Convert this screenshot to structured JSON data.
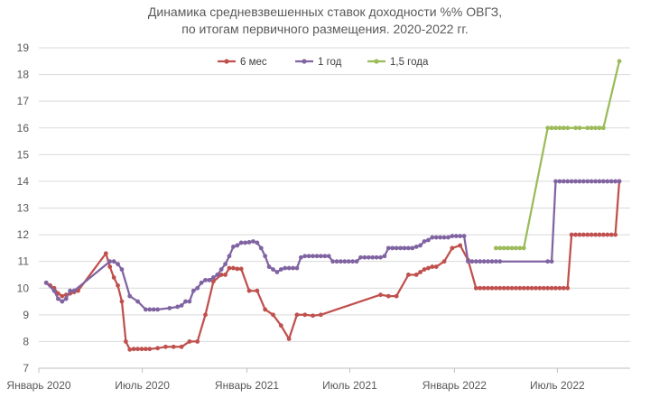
{
  "chart_data": {
    "type": "line",
    "title": "Динамика средневзвешенных ставок доходности %% ОВГЗ,",
    "subtitle": "по итогам первичного размещения. 2020-2022 гг.",
    "xlabel": "",
    "ylabel": "",
    "x_ticks": [
      {
        "date": "2020-01-01",
        "label": "Январь 2020"
      },
      {
        "date": "2020-07-01",
        "label": "Июль 2020"
      },
      {
        "date": "2021-01-01",
        "label": "Январь 2021"
      },
      {
        "date": "2021-07-01",
        "label": "Июль 2021"
      },
      {
        "date": "2022-01-01",
        "label": "Январь 2022"
      },
      {
        "date": "2022-07-01",
        "label": "Июль 2022"
      }
    ],
    "xlim": [
      "2020-01-01",
      "2022-11-06"
    ],
    "ylim": [
      7,
      19
    ],
    "y_ticks": [
      7,
      8,
      9,
      10,
      11,
      12,
      13,
      14,
      15,
      16,
      17,
      18,
      19
    ],
    "grid": true,
    "legend_position": "top",
    "series": [
      {
        "name": "6 мес",
        "color": "#c0504d",
        "points": [
          [
            "2020-01-14",
            10.2
          ],
          [
            "2020-01-21",
            10.1
          ],
          [
            "2020-01-28",
            10.0
          ],
          [
            "2020-02-04",
            9.8
          ],
          [
            "2020-02-11",
            9.7
          ],
          [
            "2020-02-18",
            9.75
          ],
          [
            "2020-02-25",
            9.8
          ],
          [
            "2020-03-03",
            9.85
          ],
          [
            "2020-03-10",
            9.9
          ],
          [
            "2020-04-28",
            11.3
          ],
          [
            "2020-05-05",
            10.8
          ],
          [
            "2020-05-12",
            10.4
          ],
          [
            "2020-05-19",
            10.1
          ],
          [
            "2020-05-26",
            9.5
          ],
          [
            "2020-06-02",
            8.0
          ],
          [
            "2020-06-09",
            7.7
          ],
          [
            "2020-06-16",
            7.72
          ],
          [
            "2020-06-23",
            7.72
          ],
          [
            "2020-06-30",
            7.72
          ],
          [
            "2020-07-07",
            7.72
          ],
          [
            "2020-07-14",
            7.72
          ],
          [
            "2020-07-28",
            7.75
          ],
          [
            "2020-08-11",
            7.8
          ],
          [
            "2020-08-25",
            7.8
          ],
          [
            "2020-09-08",
            7.8
          ],
          [
            "2020-09-22",
            8.0
          ],
          [
            "2020-10-06",
            8.0
          ],
          [
            "2020-10-20",
            9.0
          ],
          [
            "2020-11-03",
            10.25
          ],
          [
            "2020-11-17",
            10.5
          ],
          [
            "2020-11-24",
            10.5
          ],
          [
            "2020-12-01",
            10.75
          ],
          [
            "2020-12-08",
            10.75
          ],
          [
            "2020-12-15",
            10.72
          ],
          [
            "2020-12-22",
            10.72
          ],
          [
            "2021-01-05",
            9.9
          ],
          [
            "2021-01-19",
            9.9
          ],
          [
            "2021-02-02",
            9.2
          ],
          [
            "2021-02-16",
            9.0
          ],
          [
            "2021-03-02",
            8.6
          ],
          [
            "2021-03-16",
            8.1
          ],
          [
            "2021-03-30",
            9.0
          ],
          [
            "2021-04-13",
            9.0
          ],
          [
            "2021-04-27",
            8.97
          ],
          [
            "2021-05-11",
            9.0
          ],
          [
            "2021-08-24",
            9.75
          ],
          [
            "2021-09-07",
            9.7
          ],
          [
            "2021-09-21",
            9.7
          ],
          [
            "2021-10-12",
            10.5
          ],
          [
            "2021-10-26",
            10.5
          ],
          [
            "2021-11-02",
            10.6
          ],
          [
            "2021-11-09",
            10.7
          ],
          [
            "2021-11-16",
            10.75
          ],
          [
            "2021-11-23",
            10.8
          ],
          [
            "2021-11-30",
            10.8
          ],
          [
            "2021-12-14",
            11.0
          ],
          [
            "2021-12-28",
            11.5
          ],
          [
            "2022-01-11",
            11.6
          ],
          [
            "2022-01-25",
            11.05
          ],
          [
            "2022-02-08",
            10.0
          ],
          [
            "2022-02-15",
            10.0
          ],
          [
            "2022-02-22",
            10.0
          ],
          [
            "2022-03-01",
            10.0
          ],
          [
            "2022-03-08",
            10.0
          ],
          [
            "2022-03-15",
            10.0
          ],
          [
            "2022-03-22",
            10.0
          ],
          [
            "2022-03-29",
            10.0
          ],
          [
            "2022-04-05",
            10.0
          ],
          [
            "2022-04-12",
            10.0
          ],
          [
            "2022-04-19",
            10.0
          ],
          [
            "2022-04-26",
            10.0
          ],
          [
            "2022-05-03",
            10.0
          ],
          [
            "2022-05-10",
            10.0
          ],
          [
            "2022-05-17",
            10.0
          ],
          [
            "2022-05-24",
            10.0
          ],
          [
            "2022-05-31",
            10.0
          ],
          [
            "2022-06-07",
            10.0
          ],
          [
            "2022-06-14",
            10.0
          ],
          [
            "2022-06-21",
            10.0
          ],
          [
            "2022-06-28",
            10.0
          ],
          [
            "2022-07-05",
            10.0
          ],
          [
            "2022-07-12",
            10.0
          ],
          [
            "2022-07-19",
            10.0
          ],
          [
            "2022-07-26",
            12.0
          ],
          [
            "2022-08-02",
            12.0
          ],
          [
            "2022-08-09",
            12.0
          ],
          [
            "2022-08-16",
            12.0
          ],
          [
            "2022-08-23",
            12.0
          ],
          [
            "2022-08-30",
            12.0
          ],
          [
            "2022-09-06",
            12.0
          ],
          [
            "2022-09-13",
            12.0
          ],
          [
            "2022-09-20",
            12.0
          ],
          [
            "2022-09-27",
            12.0
          ],
          [
            "2022-10-04",
            12.0
          ],
          [
            "2022-10-11",
            12.0
          ],
          [
            "2022-10-18",
            14.0
          ]
        ]
      },
      {
        "name": "1 год",
        "color": "#8064a2",
        "points": [
          [
            "2020-01-14",
            10.2
          ],
          [
            "2020-01-28",
            9.9
          ],
          [
            "2020-02-04",
            9.6
          ],
          [
            "2020-02-11",
            9.5
          ],
          [
            "2020-02-18",
            9.6
          ],
          [
            "2020-02-25",
            9.9
          ],
          [
            "2020-03-03",
            9.9
          ],
          [
            "2020-05-05",
            11.0
          ],
          [
            "2020-05-12",
            11.0
          ],
          [
            "2020-05-19",
            10.9
          ],
          [
            "2020-05-26",
            10.7
          ],
          [
            "2020-06-09",
            9.7
          ],
          [
            "2020-06-23",
            9.5
          ],
          [
            "2020-07-07",
            9.2
          ],
          [
            "2020-07-14",
            9.2
          ],
          [
            "2020-07-21",
            9.2
          ],
          [
            "2020-07-28",
            9.2
          ],
          [
            "2020-08-18",
            9.25
          ],
          [
            "2020-09-01",
            9.3
          ],
          [
            "2020-09-08",
            9.35
          ],
          [
            "2020-09-15",
            9.5
          ],
          [
            "2020-09-22",
            9.5
          ],
          [
            "2020-09-29",
            9.9
          ],
          [
            "2020-10-06",
            10.0
          ],
          [
            "2020-10-13",
            10.2
          ],
          [
            "2020-10-20",
            10.3
          ],
          [
            "2020-10-27",
            10.3
          ],
          [
            "2020-11-03",
            10.4
          ],
          [
            "2020-11-10",
            10.5
          ],
          [
            "2020-11-17",
            10.7
          ],
          [
            "2020-11-24",
            10.9
          ],
          [
            "2020-12-01",
            11.2
          ],
          [
            "2020-12-08",
            11.55
          ],
          [
            "2020-12-15",
            11.6
          ],
          [
            "2020-12-22",
            11.7
          ],
          [
            "2020-12-29",
            11.7
          ],
          [
            "2021-01-05",
            11.72
          ],
          [
            "2021-01-12",
            11.75
          ],
          [
            "2021-01-19",
            11.7
          ],
          [
            "2021-01-26",
            11.5
          ],
          [
            "2021-02-02",
            11.2
          ],
          [
            "2021-02-09",
            10.8
          ],
          [
            "2021-02-16",
            10.7
          ],
          [
            "2021-02-23",
            10.6
          ],
          [
            "2021-03-02",
            10.7
          ],
          [
            "2021-03-09",
            10.75
          ],
          [
            "2021-03-16",
            10.75
          ],
          [
            "2021-03-23",
            10.75
          ],
          [
            "2021-03-30",
            10.75
          ],
          [
            "2021-04-06",
            11.15
          ],
          [
            "2021-04-13",
            11.2
          ],
          [
            "2021-04-20",
            11.2
          ],
          [
            "2021-04-27",
            11.2
          ],
          [
            "2021-05-04",
            11.2
          ],
          [
            "2021-05-11",
            11.2
          ],
          [
            "2021-05-18",
            11.2
          ],
          [
            "2021-05-25",
            11.2
          ],
          [
            "2021-06-01",
            11.0
          ],
          [
            "2021-06-08",
            11.0
          ],
          [
            "2021-06-15",
            11.0
          ],
          [
            "2021-06-22",
            11.0
          ],
          [
            "2021-06-29",
            11.0
          ],
          [
            "2021-07-06",
            11.0
          ],
          [
            "2021-07-13",
            11.0
          ],
          [
            "2021-07-20",
            11.15
          ],
          [
            "2021-07-27",
            11.15
          ],
          [
            "2021-08-03",
            11.15
          ],
          [
            "2021-08-10",
            11.15
          ],
          [
            "2021-08-17",
            11.15
          ],
          [
            "2021-08-24",
            11.15
          ],
          [
            "2021-08-31",
            11.2
          ],
          [
            "2021-09-07",
            11.5
          ],
          [
            "2021-09-14",
            11.5
          ],
          [
            "2021-09-21",
            11.5
          ],
          [
            "2021-09-28",
            11.5
          ],
          [
            "2021-10-05",
            11.5
          ],
          [
            "2021-10-12",
            11.5
          ],
          [
            "2021-10-19",
            11.5
          ],
          [
            "2021-10-26",
            11.55
          ],
          [
            "2021-11-02",
            11.6
          ],
          [
            "2021-11-09",
            11.75
          ],
          [
            "2021-11-16",
            11.8
          ],
          [
            "2021-11-23",
            11.9
          ],
          [
            "2021-11-30",
            11.9
          ],
          [
            "2021-12-07",
            11.9
          ],
          [
            "2021-12-14",
            11.9
          ],
          [
            "2021-12-21",
            11.9
          ],
          [
            "2021-12-28",
            11.95
          ],
          [
            "2022-01-04",
            11.95
          ],
          [
            "2022-01-11",
            11.95
          ],
          [
            "2022-01-18",
            11.95
          ],
          [
            "2022-01-25",
            11.0
          ],
          [
            "2022-02-01",
            11.0
          ],
          [
            "2022-02-08",
            11.0
          ],
          [
            "2022-02-15",
            11.0
          ],
          [
            "2022-02-22",
            11.0
          ],
          [
            "2022-03-01",
            11.0
          ],
          [
            "2022-03-08",
            11.0
          ],
          [
            "2022-03-15",
            11.0
          ],
          [
            "2022-03-22",
            11.0
          ],
          [
            "2022-06-14",
            11.0
          ],
          [
            "2022-06-21",
            11.0
          ],
          [
            "2022-06-28",
            14.0
          ],
          [
            "2022-07-05",
            14.0
          ],
          [
            "2022-07-12",
            14.0
          ],
          [
            "2022-07-19",
            14.0
          ],
          [
            "2022-07-26",
            14.0
          ],
          [
            "2022-08-02",
            14.0
          ],
          [
            "2022-08-09",
            14.0
          ],
          [
            "2022-08-16",
            14.0
          ],
          [
            "2022-08-23",
            14.0
          ],
          [
            "2022-08-30",
            14.0
          ],
          [
            "2022-09-06",
            14.0
          ],
          [
            "2022-09-13",
            14.0
          ],
          [
            "2022-09-20",
            14.0
          ],
          [
            "2022-09-27",
            14.0
          ],
          [
            "2022-10-04",
            14.0
          ],
          [
            "2022-10-11",
            14.0
          ],
          [
            "2022-10-18",
            14.0
          ]
        ]
      },
      {
        "name": "1,5 года",
        "color": "#9bbb59",
        "points": [
          [
            "2022-03-15",
            11.5
          ],
          [
            "2022-03-22",
            11.5
          ],
          [
            "2022-03-29",
            11.5
          ],
          [
            "2022-04-05",
            11.5
          ],
          [
            "2022-04-12",
            11.5
          ],
          [
            "2022-04-19",
            11.5
          ],
          [
            "2022-04-26",
            11.5
          ],
          [
            "2022-05-03",
            11.5
          ],
          [
            "2022-06-14",
            16.0
          ],
          [
            "2022-06-21",
            16.0
          ],
          [
            "2022-06-28",
            16.0
          ],
          [
            "2022-07-05",
            16.0
          ],
          [
            "2022-07-12",
            16.0
          ],
          [
            "2022-07-19",
            16.0
          ],
          [
            "2022-08-02",
            16.0
          ],
          [
            "2022-08-09",
            16.0
          ],
          [
            "2022-08-23",
            16.0
          ],
          [
            "2022-08-30",
            16.0
          ],
          [
            "2022-09-06",
            16.0
          ],
          [
            "2022-09-13",
            16.0
          ],
          [
            "2022-09-20",
            16.0
          ],
          [
            "2022-10-18",
            18.5
          ]
        ]
      }
    ]
  }
}
